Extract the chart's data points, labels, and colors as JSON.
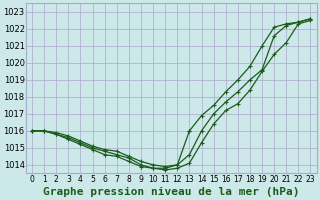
{
  "title": "Graphe pression niveau de la mer (hPa)",
  "bg_color": "#cce8e8",
  "grid_color": "#aaaacc",
  "line_color": "#1a5c1a",
  "xlim": [
    -0.5,
    23.5
  ],
  "ylim": [
    1013.5,
    1023.5
  ],
  "yticks": [
    1014,
    1015,
    1016,
    1017,
    1018,
    1019,
    1020,
    1021,
    1022,
    1023
  ],
  "xticks": [
    0,
    1,
    2,
    3,
    4,
    5,
    6,
    7,
    8,
    9,
    10,
    11,
    12,
    13,
    14,
    15,
    16,
    17,
    18,
    19,
    20,
    21,
    22,
    23
  ],
  "series": [
    {
      "x": [
        0,
        1,
        2,
        3,
        4,
        5,
        6,
        7,
        8,
        9,
        10,
        11,
        12,
        13,
        14,
        15,
        16,
        17,
        18,
        19,
        20,
        21,
        22,
        23
      ],
      "y": [
        1016.0,
        1016.0,
        1015.8,
        1015.6,
        1015.3,
        1015.0,
        1014.8,
        1014.6,
        1014.4,
        1014.0,
        1013.8,
        1013.7,
        1013.8,
        1014.1,
        1015.3,
        1016.4,
        1017.2,
        1017.6,
        1018.4,
        1019.5,
        1020.5,
        1021.2,
        1022.3,
        1022.5
      ]
    },
    {
      "x": [
        0,
        1,
        2,
        3,
        4,
        5,
        6,
        7,
        8,
        9,
        10,
        11,
        12,
        13,
        14,
        15,
        16,
        17,
        18,
        19,
        20,
        21,
        22,
        23
      ],
      "y": [
        1016.0,
        1016.0,
        1015.9,
        1015.7,
        1015.4,
        1015.1,
        1014.9,
        1014.8,
        1014.5,
        1014.2,
        1014.0,
        1013.9,
        1014.0,
        1014.6,
        1016.0,
        1017.0,
        1017.7,
        1018.3,
        1019.0,
        1019.6,
        1021.6,
        1022.2,
        1022.4,
        1022.6
      ]
    },
    {
      "x": [
        0,
        1,
        2,
        3,
        4,
        5,
        6,
        7,
        8,
        9,
        10,
        11,
        12,
        13
      ],
      "y": [
        1016.0,
        1016.0,
        1015.8,
        1015.5,
        1015.2,
        1014.9,
        1014.6,
        1014.5,
        1014.2,
        1013.9,
        1013.8,
        1013.8,
        1014.0,
        1016.0
      ]
    },
    {
      "x": [
        13,
        14,
        15,
        16,
        17,
        18,
        19,
        20,
        21,
        22,
        23
      ],
      "y": [
        1016.0,
        1016.9,
        1017.5,
        1018.3,
        1019.0,
        1019.8,
        1021.0,
        1022.1,
        1022.3,
        1022.4,
        1022.6
      ]
    }
  ],
  "ytick_fontsize": 6,
  "xtick_fontsize": 5.5,
  "xlabel_fontsize": 8,
  "marker": "+",
  "marker_size": 2.5,
  "linewidth": 0.9
}
